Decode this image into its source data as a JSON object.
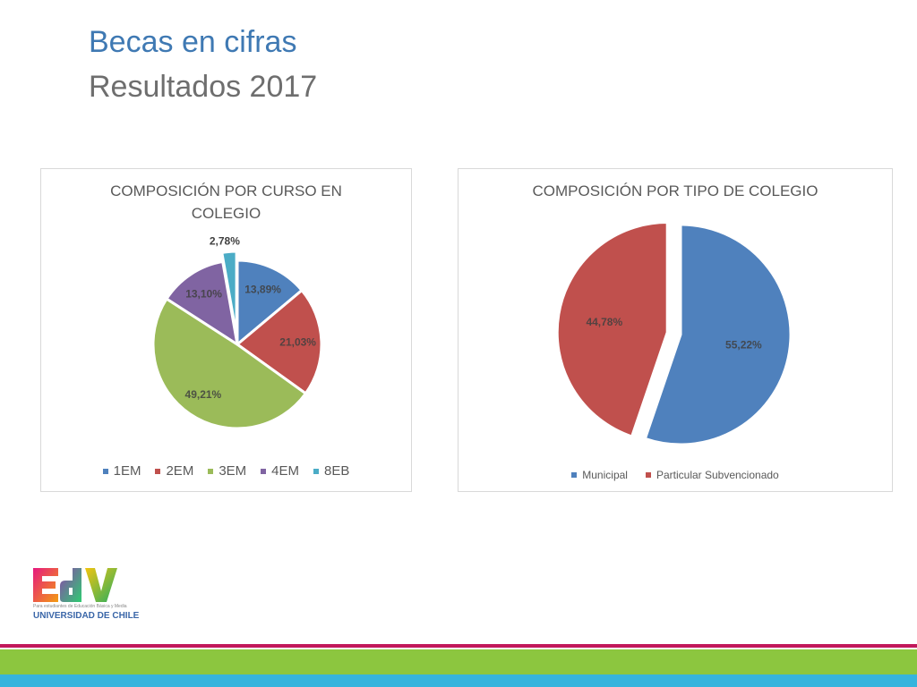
{
  "slide": {
    "title": "Becas en cifras",
    "subtitle": "Resultados 2017"
  },
  "chart_data": [
    {
      "type": "pie",
      "title": "COMPOSICIÓN POR CURSO EN COLEGIO",
      "categories": [
        "1EM",
        "2EM",
        "3EM",
        "4EM",
        "8EB"
      ],
      "values": [
        13.89,
        21.03,
        49.21,
        13.1,
        2.78
      ],
      "data_labels": [
        "13,89%",
        "21,03%",
        "49,21%",
        "13,10%",
        "2,78%"
      ],
      "colors": [
        "#4f81bd",
        "#c0504d",
        "#9bbb59",
        "#8064a2",
        "#4bacc6"
      ],
      "legend": "bottom",
      "exploded_index": 4
    },
    {
      "type": "pie",
      "title": "COMPOSICIÓN POR TIPO DE COLEGIO",
      "categories": [
        "Municipal",
        "Particular Subvencionado"
      ],
      "values": [
        55.22,
        44.78
      ],
      "data_labels": [
        "55,22%",
        "44,78%"
      ],
      "colors": [
        "#4f81bd",
        "#c0504d"
      ],
      "legend": "bottom",
      "exploded_index": 1
    }
  ],
  "logo": {
    "mark": "EdV",
    "line1": "Para estudiantes de Educación Básica y Media",
    "line2": "UNIVERSIDAD DE CHILE"
  },
  "colors": {
    "title": "#3f79b3",
    "subtitle": "#6e6e6e",
    "stripe_pink": "#c2185b",
    "stripe_green": "#8cc63f",
    "stripe_blue": "#35b4dd"
  }
}
